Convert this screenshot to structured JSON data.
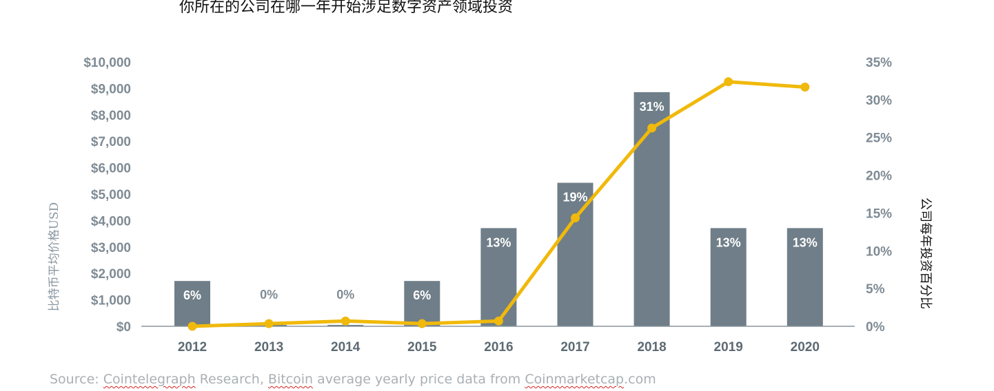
{
  "chart_data": {
    "type": "bar+line",
    "title": "你所在的公司在哪一年开始涉足数字资产领域投资",
    "categories": [
      "2012",
      "2013",
      "2014",
      "2015",
      "2016",
      "2017",
      "2018",
      "2019",
      "2020"
    ],
    "bar_series": {
      "axis": "right",
      "values": [
        6,
        0,
        0,
        6,
        13,
        19,
        31,
        13,
        13
      ],
      "labels": [
        "6%",
        "0%",
        "0%",
        "6%",
        "13%",
        "19%",
        "31%",
        "13%",
        "13%"
      ],
      "color": "#6f7e88"
    },
    "line_series": {
      "axis": "left",
      "values": [
        0,
        100,
        200,
        100,
        200,
        4100,
        7500,
        9250,
        9050
      ],
      "color": "#f0b90b"
    },
    "y_left": {
      "label": "比特币平均价格USD",
      "ylim": [
        0,
        10000
      ],
      "ticks": [
        "$0",
        "$1,000",
        "$2,000",
        "$3,000",
        "$4,000",
        "$5,000",
        "$6,000",
        "$7,000",
        "$8,000",
        "$9,000",
        "$10,000"
      ]
    },
    "y_right": {
      "label": "公司每年投资百分比",
      "ylim": [
        0,
        35
      ],
      "ticks": [
        "0%",
        "5%",
        "10%",
        "15%",
        "20%",
        "25%",
        "30%",
        "35%"
      ]
    },
    "grid": false,
    "legend": "none"
  },
  "source": {
    "prefix": "Source: ",
    "w1": "Cointelegraph",
    "t1": " Research, ",
    "w2": "Bitcoin",
    "t2": " average yearly price data from ",
    "w3": "Coinmarketcap",
    "t3": ".com"
  },
  "colors": {
    "bar": "#6f7e88",
    "line": "#f0b90b",
    "label_on_bar": "#ffffff",
    "label_zero": "#7f8b94",
    "axis": "#7f8b94"
  }
}
